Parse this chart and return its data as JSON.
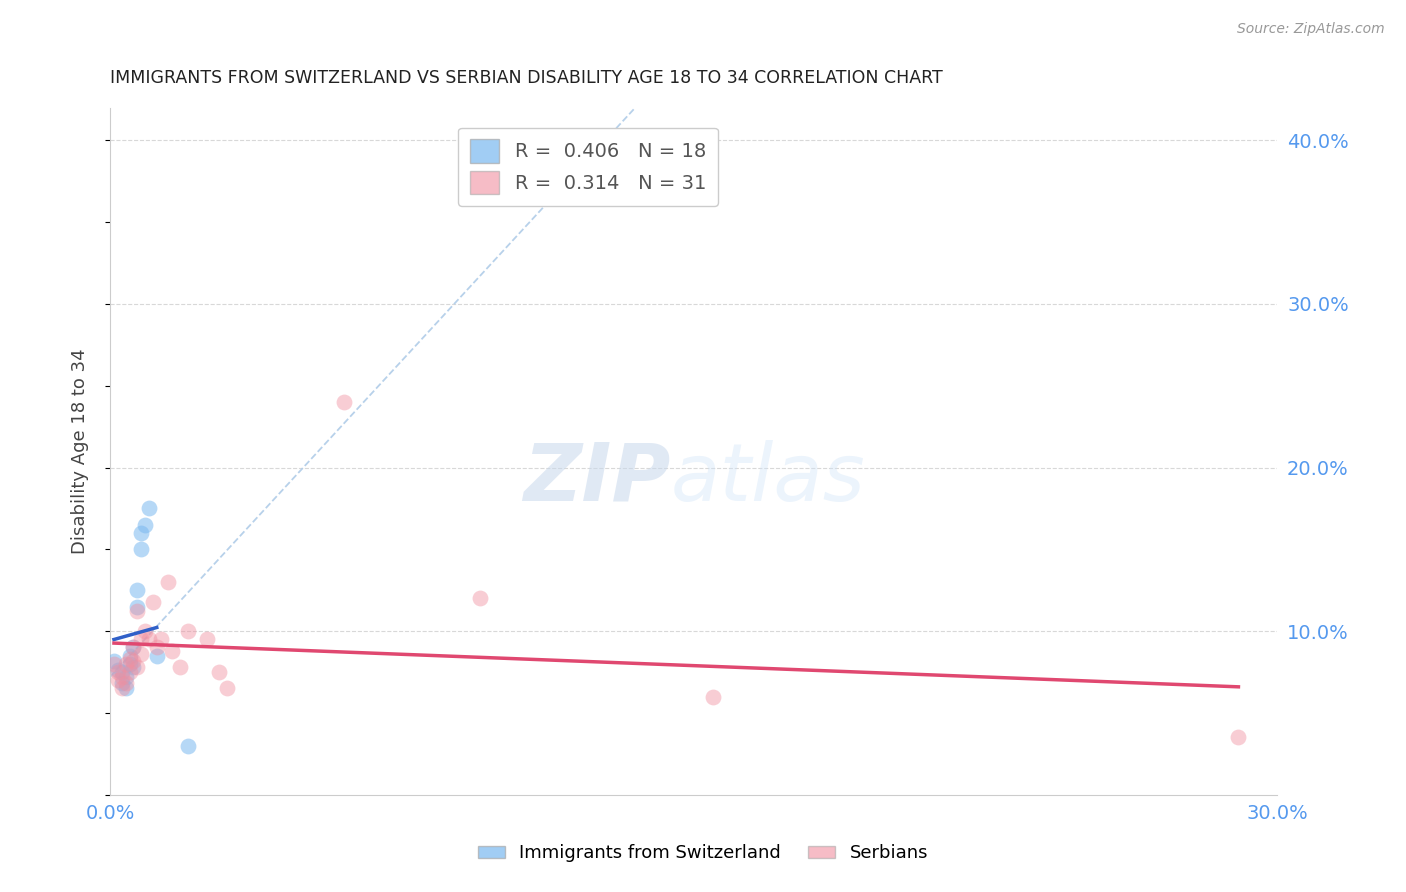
{
  "title": "IMMIGRANTS FROM SWITZERLAND VS SERBIAN DISABILITY AGE 18 TO 34 CORRELATION CHART",
  "source": "Source: ZipAtlas.com",
  "ylabel": "Disability Age 18 to 34",
  "xlim": [
    0.0,
    0.3
  ],
  "ylim": [
    0.0,
    0.42
  ],
  "xticks": [
    0.0,
    0.05,
    0.1,
    0.15,
    0.2,
    0.25,
    0.3
  ],
  "yticks": [
    0.0,
    0.05,
    0.1,
    0.15,
    0.2,
    0.25,
    0.3,
    0.35,
    0.4
  ],
  "ytick_labels_right": [
    "",
    "",
    "10.0%",
    "",
    "20.0%",
    "",
    "30.0%",
    "",
    "40.0%"
  ],
  "background_color": "#ffffff",
  "grid_color": "#d8d8d8",
  "watermark_zip": "ZIP",
  "watermark_atlas": "atlas",
  "legend_R1": "0.406",
  "legend_N1": "18",
  "legend_R2": "0.314",
  "legend_N2": "31",
  "blue_color": "#7ab8f0",
  "pink_color": "#f090a0",
  "blue_line_color": "#3060c8",
  "pink_line_color": "#e04870",
  "dash_line_color": "#b0cce8",
  "swiss_points_x": [
    0.001,
    0.002,
    0.003,
    0.003,
    0.004,
    0.004,
    0.005,
    0.005,
    0.006,
    0.006,
    0.007,
    0.007,
    0.008,
    0.008,
    0.009,
    0.01,
    0.012,
    0.02
  ],
  "swiss_points_y": [
    0.082,
    0.076,
    0.075,
    0.068,
    0.072,
    0.065,
    0.08,
    0.085,
    0.09,
    0.078,
    0.115,
    0.125,
    0.16,
    0.15,
    0.165,
    0.175,
    0.085,
    0.03
  ],
  "serbian_points_x": [
    0.001,
    0.002,
    0.002,
    0.003,
    0.003,
    0.004,
    0.004,
    0.005,
    0.005,
    0.006,
    0.006,
    0.007,
    0.007,
    0.008,
    0.008,
    0.009,
    0.01,
    0.011,
    0.012,
    0.013,
    0.015,
    0.016,
    0.018,
    0.02,
    0.025,
    0.028,
    0.03,
    0.06,
    0.095,
    0.155,
    0.29
  ],
  "serbian_points_y": [
    0.08,
    0.075,
    0.07,
    0.072,
    0.065,
    0.08,
    0.068,
    0.083,
    0.075,
    0.09,
    0.082,
    0.112,
    0.078,
    0.095,
    0.086,
    0.1,
    0.095,
    0.118,
    0.09,
    0.095,
    0.13,
    0.088,
    0.078,
    0.1,
    0.095,
    0.075,
    0.065,
    0.24,
    0.12,
    0.06,
    0.035
  ],
  "blue_line_x": [
    0.001,
    0.012
  ],
  "pink_line_x": [
    0.001,
    0.29
  ]
}
